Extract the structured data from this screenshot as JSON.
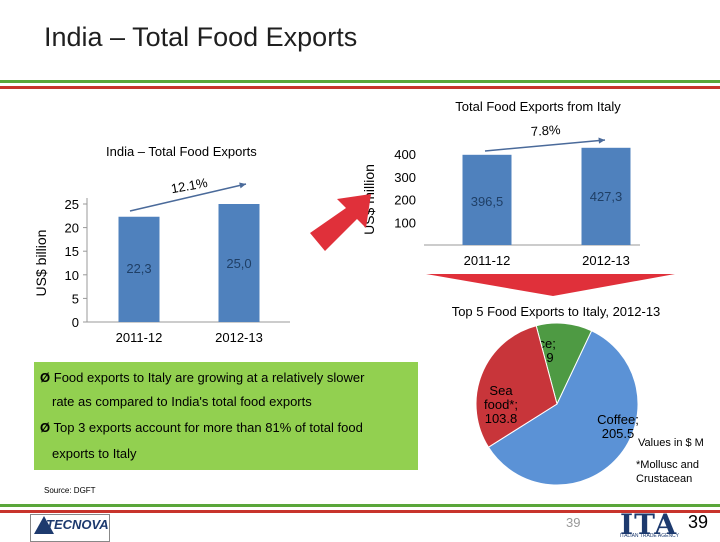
{
  "slide": {
    "title": "India – Total Food Exports",
    "page_number": "39",
    "source": "Source: DGFT",
    "values_note": "Values in $ M",
    "footnote": "*Mollusc and Crustacean",
    "bullets": [
      {
        "line1": "Food exports to Italy are growing at a relatively slower",
        "line2": "rate as compared to India's total food exports"
      },
      {
        "line1": "Top 3 exports account for more than 81% of total food",
        "line2": "exports to Italy"
      }
    ],
    "bullet_arrow": "Ø",
    "logo_tecnova": "TECNOVA",
    "logo_ita": "ITA",
    "logo_ita_sub": "ITALIAN TRADE AGENCY",
    "colors": {
      "accent_green": "#92d050",
      "bar_blue": "#4f81bd",
      "arrow_red": "#e0303a",
      "pie_green": "#4e9a43",
      "pie_red": "#c8353a",
      "pie_blue": "#5b92d6"
    }
  },
  "chart_data": [
    {
      "type": "bar",
      "title": "India – Total Food Exports",
      "categories": [
        "2011-12",
        "2012-13"
      ],
      "values": [
        22.3,
        25.0
      ],
      "value_labels": [
        "22,3",
        "25,0"
      ],
      "ylabel": "US$ billion",
      "ylim": [
        0,
        25
      ],
      "yticks": [
        "0",
        "5",
        "10",
        "15",
        "20",
        "25"
      ],
      "growth_label": "12.1%"
    },
    {
      "type": "bar",
      "title": "Total Food Exports from Italy",
      "categories": [
        "2011-12",
        "2012-13"
      ],
      "values": [
        396.5,
        427.3
      ],
      "value_labels": [
        "396,5",
        "427,3"
      ],
      "ylabel": "US$ million",
      "ylim": [
        0,
        400
      ],
      "yticks": [
        "100",
        "200",
        "300",
        "400"
      ],
      "growth_label": "7.8%"
    },
    {
      "type": "pie",
      "title": "Top 5 Food Exports to Italy, 2012-13",
      "slices": [
        {
          "label": "Rice;\n38.9",
          "value": 38.9
        },
        {
          "label": "Coffee;\n205.5",
          "value": 205.5
        },
        {
          "label": "Sea\nfood*;\n103.8",
          "value": 103.8
        }
      ]
    }
  ]
}
